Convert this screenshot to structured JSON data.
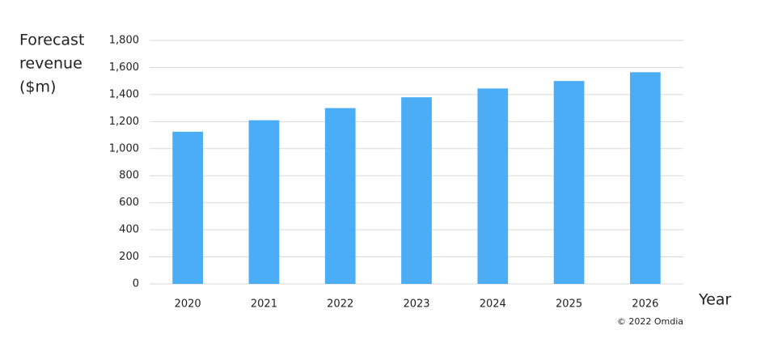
{
  "chart_data": {
    "type": "bar",
    "y_label": [
      "Forecast",
      "revenue",
      "($m)"
    ],
    "x_label": "Year",
    "source": "© 2022 Omdia",
    "categories": [
      "2020",
      "2021",
      "2022",
      "2023",
      "2024",
      "2025",
      "2026"
    ],
    "values": [
      1125,
      1210,
      1300,
      1380,
      1445,
      1500,
      1565
    ],
    "color": "#4badf5",
    "ylim": [
      0,
      1800
    ],
    "yticks": [
      0,
      200,
      400,
      600,
      800,
      {
        "value": 1000,
        "label": "1,000"
      },
      {
        "value": 1200,
        "label": "1,200"
      },
      {
        "value": 1400,
        "label": "1,400"
      },
      {
        "value": 1600,
        "label": "1,600"
      },
      {
        "value": 1800,
        "label": "1,800"
      }
    ],
    "grid": true
  }
}
